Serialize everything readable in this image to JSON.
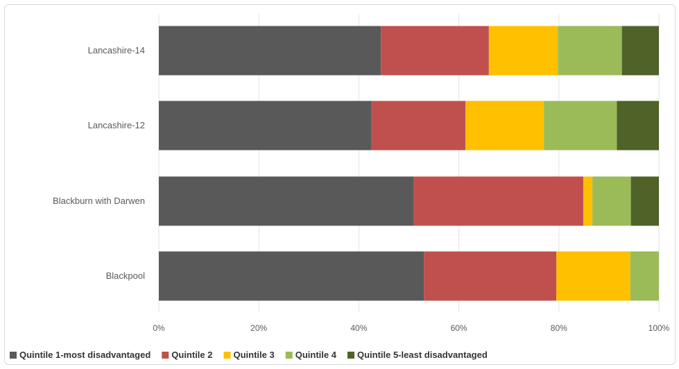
{
  "chart_data": {
    "type": "bar",
    "orientation": "horizontal",
    "stacked": "percent",
    "categories": [
      "Lancashire-14",
      "Lancashire-12",
      "Blackburn with Darwen",
      "Blackpool"
    ],
    "series": [
      {
        "name": "Quintile 1-most disadvantaged",
        "color": "#595959",
        "values": [
          44.4,
          42.5,
          50.9,
          53.0
        ]
      },
      {
        "name": "Quintile 2",
        "color": "#c0504d",
        "values": [
          21.6,
          18.8,
          34.0,
          26.5
        ]
      },
      {
        "name": "Quintile 3",
        "color": "#ffc000",
        "values": [
          13.8,
          15.7,
          1.8,
          14.8
        ]
      },
      {
        "name": "Quintile 4",
        "color": "#9bbb59",
        "values": [
          12.8,
          14.6,
          7.7,
          5.7
        ]
      },
      {
        "name": "Quintile 5-least disadvantaged",
        "color": "#4f6228",
        "values": [
          7.4,
          8.4,
          5.6,
          0.0
        ]
      }
    ],
    "x_ticks": [
      "0%",
      "20%",
      "40%",
      "60%",
      "80%",
      "100%"
    ],
    "xlim": [
      0,
      100
    ],
    "grid": true,
    "legend_position": "bottom"
  }
}
